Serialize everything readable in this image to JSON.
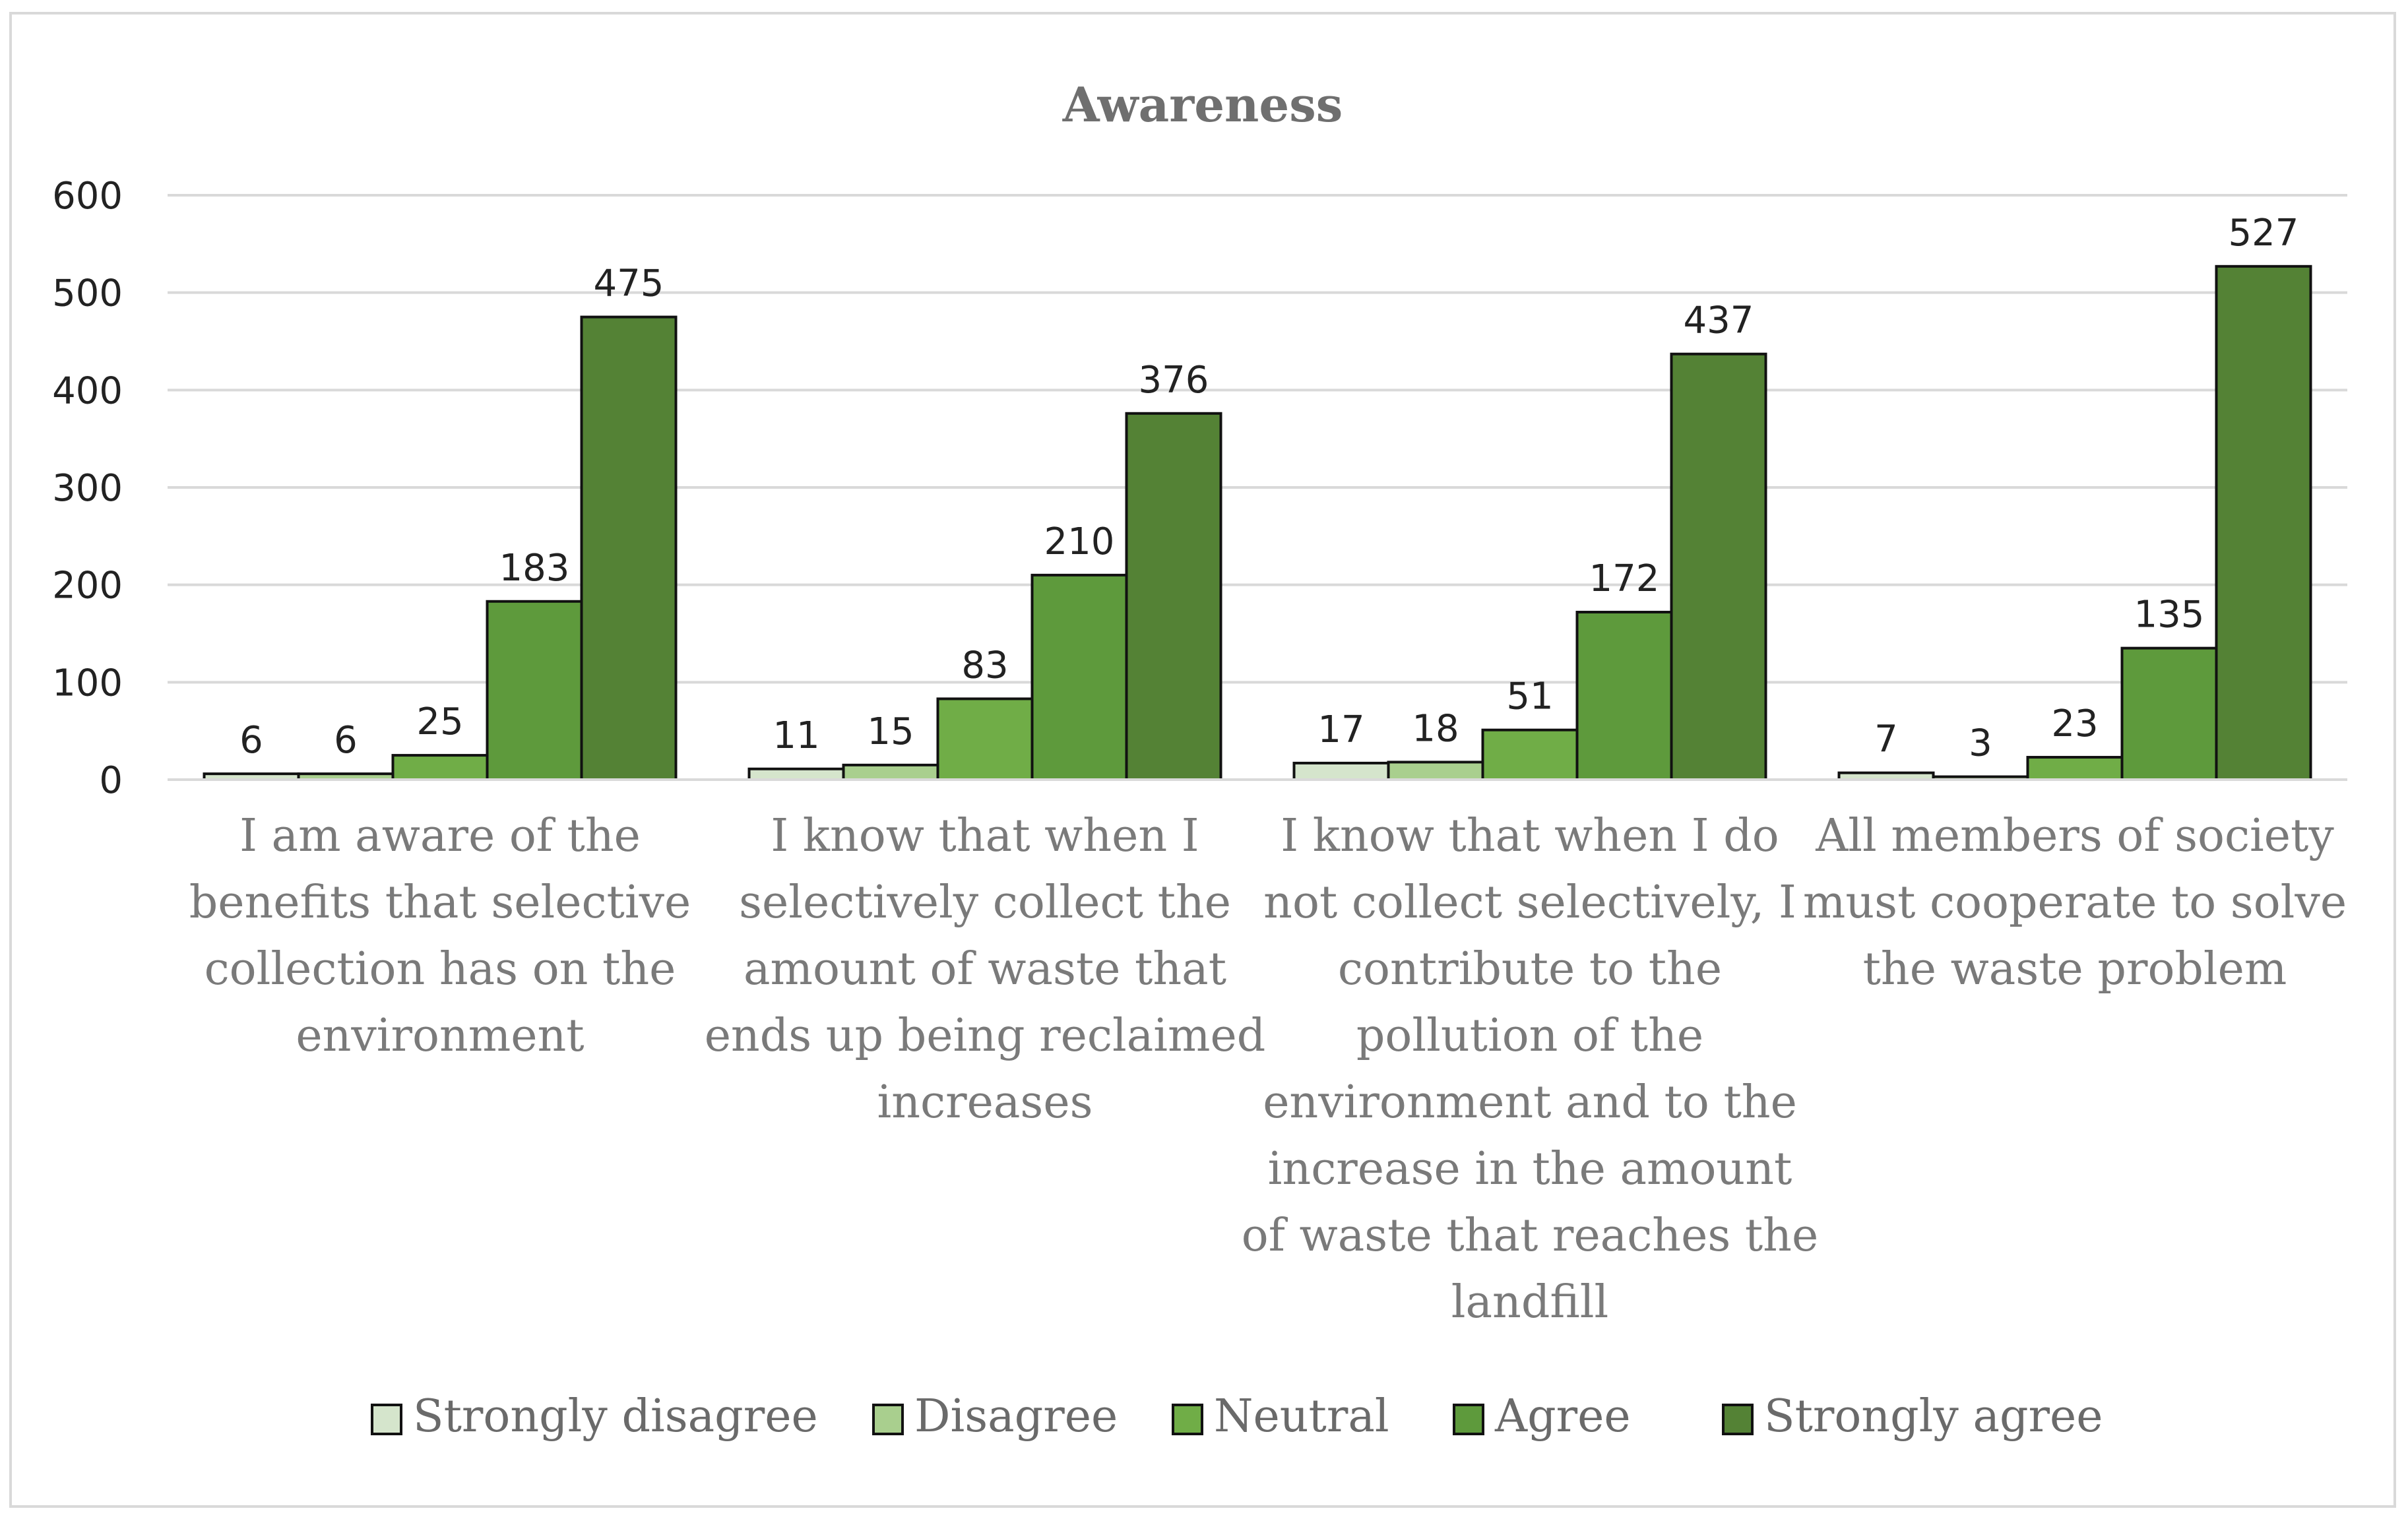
{
  "chart_data": {
    "type": "bar",
    "title": "Awareness",
    "xlabel": "",
    "ylabel": "",
    "ylim": [
      0,
      600
    ],
    "yticks": [
      0,
      100,
      200,
      300,
      400,
      500,
      600
    ],
    "grid": true,
    "legend_position": "bottom",
    "categories": [
      "I am aware of the benefits that selective collection has on the environment",
      "I know that when I selectively collect the amount of waste that ends up being reclaimed increases",
      "I know that when I do not collect selectively, I contribute to the pollution of the environment and to the increase in the amount of waste that reaches the landfill",
      "All members of society must cooperate to solve the waste problem"
    ],
    "category_lines": [
      [
        "I am aware of the",
        "benefits that selective",
        "collection has on the",
        "environment"
      ],
      [
        "I know that when I",
        "selectively collect the",
        "amount of waste that",
        "ends up being reclaimed",
        "increases"
      ],
      [
        "I know that when I do",
        "not collect selectively, I",
        "contribute to the",
        "pollution of the",
        "environment and to the",
        "increase in the amount",
        "of waste that reaches the",
        "landfill"
      ],
      [
        "All members of society",
        "must cooperate to solve",
        "the waste problem"
      ]
    ],
    "series": [
      {
        "name": "Strongly disagree",
        "color": "#d5e5cc",
        "values": [
          6,
          11,
          17,
          7
        ]
      },
      {
        "name": "Disagree",
        "color": "#a9cf8e",
        "values": [
          6,
          15,
          18,
          3
        ]
      },
      {
        "name": "Neutral",
        "color": "#70ad47",
        "values": [
          25,
          83,
          51,
          23
        ]
      },
      {
        "name": "Agree",
        "color": "#5e9a3c",
        "values": [
          183,
          210,
          172,
          135
        ]
      },
      {
        "name": "Strongly agree",
        "color": "#548235",
        "values": [
          475,
          376,
          437,
          527
        ]
      }
    ]
  }
}
